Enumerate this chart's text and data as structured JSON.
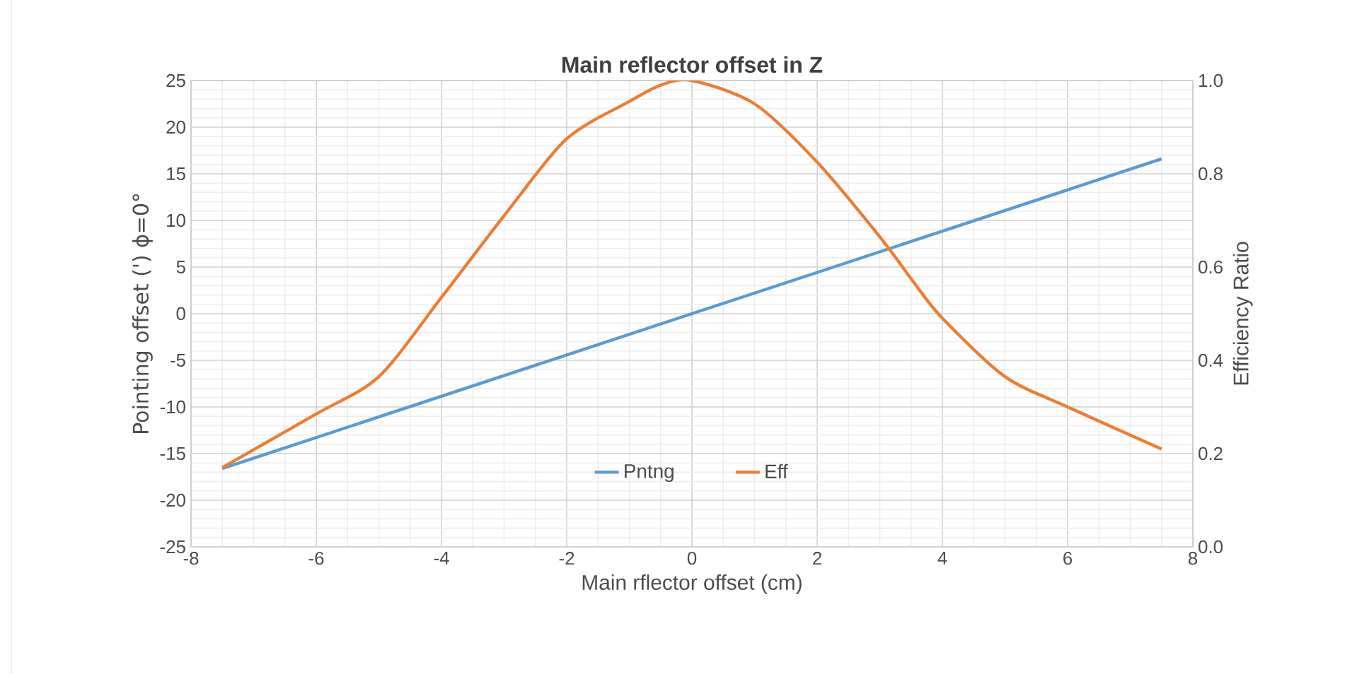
{
  "chart_data": {
    "type": "line",
    "title": "Main reflector offset in Z",
    "xlabel": "Main rflector offset (cm)",
    "ylabel": "Pointing offset (') ϕ=0°",
    "y2label": "Efficiency Ratio",
    "xlim": [
      -8,
      8
    ],
    "xticks": [
      -8,
      -6,
      -4,
      -2,
      0,
      2,
      4,
      6,
      8
    ],
    "ylim": [
      -25,
      25
    ],
    "yticks": [
      -25,
      -20,
      -15,
      -10,
      -5,
      0,
      5,
      10,
      15,
      20,
      25
    ],
    "y2lim": [
      0,
      1
    ],
    "y2ticks": [
      {
        "value": 0,
        "label": "0.0"
      },
      0.2,
      0.4,
      0.6,
      0.8,
      {
        "value": 1,
        "label": "1.0"
      }
    ],
    "grid": true,
    "legend": "bottom",
    "marker": "none",
    "line_style": "solid",
    "series": [
      {
        "name": "Pntng",
        "color": "#5b9bd5",
        "x": [
          -7.5,
          7.5
        ],
        "values": [
          -16.6,
          16.6
        ]
      },
      {
        "name": "Eff",
        "color": "#ed7d31",
        "axis": "y2",
        "x": [
          -7.5,
          -6,
          -5,
          -4,
          -3,
          -2,
          -1,
          -0.5,
          0,
          1,
          2,
          3,
          3.5,
          4,
          5,
          6,
          7.5
        ],
        "values": [
          0.17,
          0.285,
          0.365,
          0.535,
          0.71,
          0.875,
          0.955,
          0.99,
          1.0,
          0.95,
          0.825,
          0.665,
          0.575,
          0.49,
          0.365,
          0.3,
          0.21
        ]
      }
    ]
  }
}
